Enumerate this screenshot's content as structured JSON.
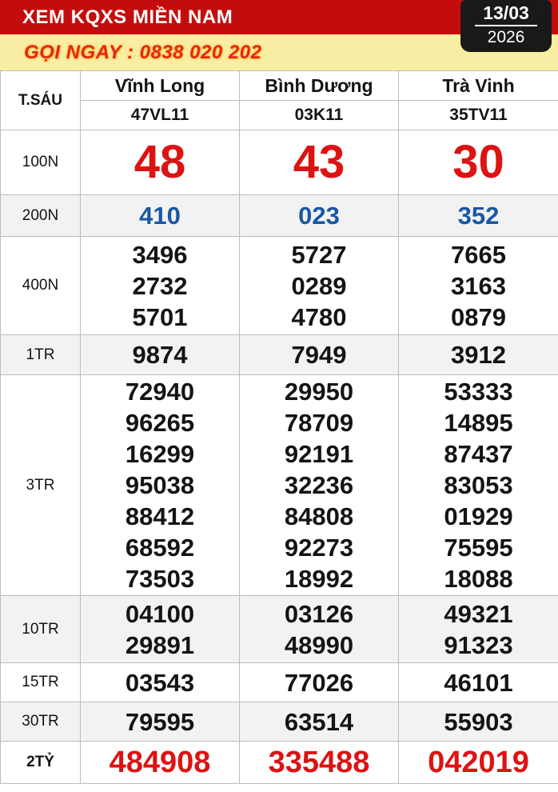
{
  "header": {
    "title": "XEM KQXS MIỀN NAM",
    "date": "13/03",
    "year": "2026"
  },
  "hotline": {
    "text": "GỌI NGAY : 0838 020 202"
  },
  "table": {
    "day_label": "T.SÁU",
    "provinces": [
      "Vĩnh Long",
      "Bình Dương",
      "Trà Vinh"
    ],
    "codes": [
      "47VL11",
      "03K11",
      "35TV11"
    ],
    "rows": [
      {
        "label": "100N",
        "values": [
          [
            "48"
          ],
          [
            "43"
          ],
          [
            "30"
          ]
        ]
      },
      {
        "label": "200N",
        "values": [
          [
            "410"
          ],
          [
            "023"
          ],
          [
            "352"
          ]
        ]
      },
      {
        "label": "400N",
        "values": [
          [
            "3496",
            "2732",
            "5701"
          ],
          [
            "5727",
            "0289",
            "4780"
          ],
          [
            "7665",
            "3163",
            "0879"
          ]
        ]
      },
      {
        "label": "1TR",
        "values": [
          [
            "9874"
          ],
          [
            "7949"
          ],
          [
            "3912"
          ]
        ]
      },
      {
        "label": "3TR",
        "values": [
          [
            "72940",
            "96265",
            "16299",
            "95038",
            "88412",
            "68592",
            "73503"
          ],
          [
            "29950",
            "78709",
            "92191",
            "32236",
            "84808",
            "92273",
            "18992"
          ],
          [
            "53333",
            "14895",
            "87437",
            "83053",
            "01929",
            "75595",
            "18088"
          ]
        ]
      },
      {
        "label": "10TR",
        "values": [
          [
            "04100",
            "29891"
          ],
          [
            "03126",
            "48990"
          ],
          [
            "49321",
            "91323"
          ]
        ]
      },
      {
        "label": "15TR",
        "values": [
          [
            "03543"
          ],
          [
            "77026"
          ],
          [
            "46101"
          ]
        ]
      },
      {
        "label": "30TR",
        "values": [
          [
            "79595"
          ],
          [
            "63514"
          ],
          [
            "55903"
          ]
        ]
      },
      {
        "label": "2TỶ",
        "values": [
          [
            "484908"
          ],
          [
            "335488"
          ],
          [
            "042019"
          ]
        ]
      }
    ]
  },
  "colors": {
    "bar_red": "#c30d0c",
    "panel_yellow": "#f9eda3",
    "hotline_red": "#e3261d",
    "number_red": "#dc1312",
    "number_blue": "#1757a6",
    "row_stripe_gray": "#f2f2f2",
    "date_box_black": "#191919"
  }
}
